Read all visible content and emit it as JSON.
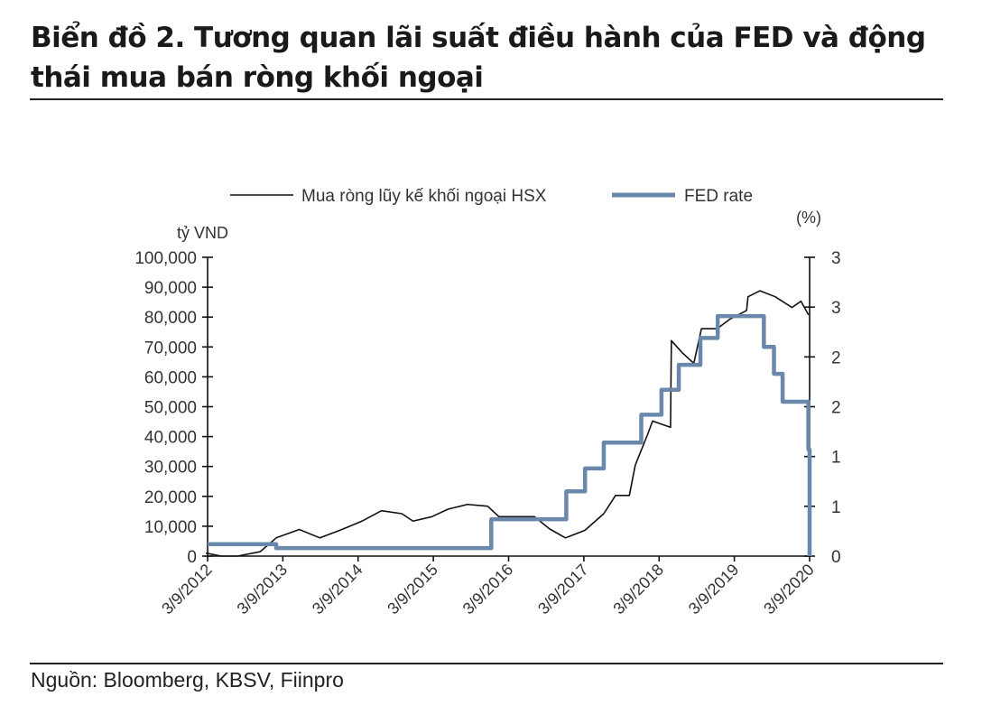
{
  "title": "Biển đồ 2. Tương quan lãi suất điều hành của FED và động thái mua bán ròng khối ngoại",
  "source": "Nguồn: Bloomberg, KBSV, Fiinpro",
  "chart_data": {
    "type": "line",
    "title": "Biển đồ 2. Tương quan lãi suất điều hành của FED và động thái mua bán ròng khối ngoại",
    "ylabel": "tỷ VND",
    "y2label": "(%)",
    "ylim": [
      0,
      100000
    ],
    "y2lim": [
      0,
      3
    ],
    "xlim": [
      "2012-03-09",
      "2020-03-09"
    ],
    "yticks": [
      "0",
      "10,000",
      "20,000",
      "30,000",
      "40,000",
      "50,000",
      "60,000",
      "70,000",
      "80,000",
      "90,000",
      "100,000"
    ],
    "y2ticks": [
      "0",
      "1",
      "1",
      "2",
      "2",
      "3",
      "3"
    ],
    "xticks": [
      "3/9/2012",
      "3/9/2013",
      "3/9/2014",
      "3/9/2015",
      "3/9/2016",
      "3/9/2017",
      "3/9/2018",
      "3/9/2019",
      "3/9/2020"
    ],
    "grid": false,
    "legend_position": "top",
    "series": [
      {
        "name": "Mua ròng lũy kế khối ngoại HSX",
        "axis": "left",
        "color": "#111111",
        "points": [
          [
            "2012-03-01",
            1000
          ],
          [
            "2012-05-15",
            0
          ],
          [
            "2012-08-01",
            0
          ],
          [
            "2012-11-20",
            1500
          ],
          [
            "2013-02-05",
            6100
          ],
          [
            "2013-05-28",
            8900
          ],
          [
            "2013-09-05",
            6100
          ],
          [
            "2013-12-10",
            8600
          ],
          [
            "2014-03-28",
            11700
          ],
          [
            "2014-07-01",
            15200
          ],
          [
            "2014-10-08",
            14200
          ],
          [
            "2014-12-01",
            11700
          ],
          [
            "2015-03-03",
            13200
          ],
          [
            "2015-05-20",
            15700
          ],
          [
            "2015-08-22",
            17300
          ],
          [
            "2015-11-28",
            16700
          ],
          [
            "2016-01-22",
            13200
          ],
          [
            "2016-07-12",
            13200
          ],
          [
            "2016-09-24",
            9100
          ],
          [
            "2016-12-10",
            6100
          ],
          [
            "2017-03-14",
            8600
          ],
          [
            "2017-06-14",
            14200
          ],
          [
            "2017-08-10",
            20300
          ],
          [
            "2017-10-16",
            20300
          ],
          [
            "2017-11-14",
            30500
          ],
          [
            "2018-01-12",
            40600
          ],
          [
            "2018-02-06",
            45200
          ],
          [
            "2018-05-04",
            43100
          ],
          [
            "2018-05-08",
            72100
          ],
          [
            "2018-07-01",
            68000
          ],
          [
            "2018-08-25",
            64500
          ],
          [
            "2018-10-01",
            76100
          ],
          [
            "2018-12-16",
            76100
          ],
          [
            "2019-02-14",
            79200
          ],
          [
            "2019-05-08",
            82200
          ],
          [
            "2019-05-15",
            86800
          ],
          [
            "2019-07-12",
            88800
          ],
          [
            "2019-09-24",
            86800
          ],
          [
            "2019-12-14",
            83200
          ],
          [
            "2020-01-27",
            85300
          ],
          [
            "2020-03-04",
            80700
          ]
        ]
      },
      {
        "name": "FED rate",
        "axis": "right",
        "color": "#6a88ab",
        "step": true,
        "points": [
          [
            "2012-03-09",
            0.12
          ],
          [
            "2013-02-05",
            0.08
          ],
          [
            "2015-12-16",
            0.37
          ],
          [
            "2016-12-14",
            0.65
          ],
          [
            "2017-03-15",
            0.88
          ],
          [
            "2017-06-14",
            1.14
          ],
          [
            "2017-12-13",
            1.42
          ],
          [
            "2018-03-21",
            1.67
          ],
          [
            "2018-06-13",
            1.92
          ],
          [
            "2018-09-26",
            2.19
          ],
          [
            "2018-12-19",
            2.41
          ],
          [
            "2019-07-31",
            2.1
          ],
          [
            "2019-09-18",
            1.83
          ],
          [
            "2019-10-30",
            1.55
          ],
          [
            "2020-03-03",
            1.07
          ],
          [
            "2020-03-09",
            0.0
          ]
        ]
      }
    ]
  }
}
